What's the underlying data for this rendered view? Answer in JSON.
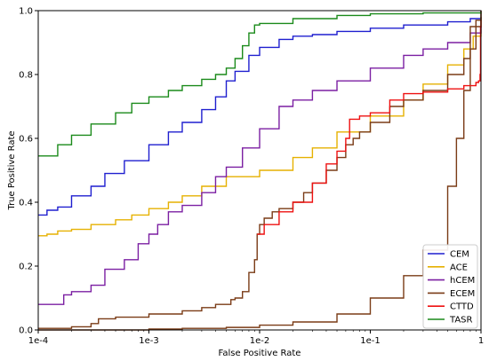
{
  "chart_data": {
    "type": "line",
    "title": "",
    "xlabel": "False Positive Rate",
    "ylabel": "True Positive Rate",
    "xscale": "log",
    "xlim": [
      0.0001,
      1
    ],
    "ylim": [
      0,
      1
    ],
    "xticks": [
      {
        "value": 0.0001,
        "label": "1e-4"
      },
      {
        "value": 0.001,
        "label": "1e-3"
      },
      {
        "value": 0.01,
        "label": "1e-2"
      },
      {
        "value": 0.1,
        "label": "1e-1"
      },
      {
        "value": 1,
        "label": "1"
      }
    ],
    "yticks": [
      {
        "value": 0,
        "label": "0.0"
      },
      {
        "value": 0.2,
        "label": "0.2"
      },
      {
        "value": 0.4,
        "label": "0.4"
      },
      {
        "value": 0.6,
        "label": "0.6"
      },
      {
        "value": 0.8,
        "label": "0.8"
      },
      {
        "value": 1,
        "label": "1.0"
      }
    ],
    "grid": false,
    "legend_position": "bottom-right",
    "series": [
      {
        "name": "CEM",
        "color": "#1f1fcf",
        "points": [
          [
            0.0001,
            0.36
          ],
          [
            0.00012,
            0.375
          ],
          [
            0.00015,
            0.385
          ],
          [
            0.0002,
            0.42
          ],
          [
            0.0003,
            0.45
          ],
          [
            0.0004,
            0.49
          ],
          [
            0.0006,
            0.53
          ],
          [
            0.001,
            0.58
          ],
          [
            0.0015,
            0.62
          ],
          [
            0.002,
            0.65
          ],
          [
            0.003,
            0.69
          ],
          [
            0.004,
            0.73
          ],
          [
            0.005,
            0.78
          ],
          [
            0.006,
            0.81
          ],
          [
            0.008,
            0.86
          ],
          [
            0.01,
            0.885
          ],
          [
            0.015,
            0.91
          ],
          [
            0.02,
            0.92
          ],
          [
            0.03,
            0.925
          ],
          [
            0.05,
            0.935
          ],
          [
            0.1,
            0.945
          ],
          [
            0.2,
            0.955
          ],
          [
            0.5,
            0.965
          ],
          [
            0.8,
            0.975
          ],
          [
            1,
            0.98
          ]
        ]
      },
      {
        "name": "ACE",
        "color": "#e6b100",
        "points": [
          [
            0.0001,
            0.295
          ],
          [
            0.00012,
            0.3
          ],
          [
            0.00015,
            0.31
          ],
          [
            0.0002,
            0.315
          ],
          [
            0.0003,
            0.33
          ],
          [
            0.0005,
            0.345
          ],
          [
            0.0007,
            0.36
          ],
          [
            0.001,
            0.38
          ],
          [
            0.0015,
            0.4
          ],
          [
            0.002,
            0.42
          ],
          [
            0.003,
            0.45
          ],
          [
            0.005,
            0.48
          ],
          [
            0.01,
            0.5
          ],
          [
            0.02,
            0.54
          ],
          [
            0.03,
            0.57
          ],
          [
            0.05,
            0.62
          ],
          [
            0.1,
            0.67
          ],
          [
            0.2,
            0.72
          ],
          [
            0.3,
            0.77
          ],
          [
            0.5,
            0.83
          ],
          [
            0.7,
            0.88
          ],
          [
            0.85,
            0.92
          ],
          [
            1,
            0.98
          ]
        ]
      },
      {
        "name": "hCEM",
        "color": "#7b1fa2",
        "points": [
          [
            0.0001,
            0.08
          ],
          [
            0.00016,
            0.08
          ],
          [
            0.00017,
            0.11
          ],
          [
            0.0002,
            0.12
          ],
          [
            0.0003,
            0.14
          ],
          [
            0.0004,
            0.19
          ],
          [
            0.0006,
            0.22
          ],
          [
            0.0008,
            0.27
          ],
          [
            0.001,
            0.3
          ],
          [
            0.0012,
            0.33
          ],
          [
            0.0015,
            0.37
          ],
          [
            0.002,
            0.39
          ],
          [
            0.003,
            0.43
          ],
          [
            0.004,
            0.48
          ],
          [
            0.005,
            0.51
          ],
          [
            0.007,
            0.57
          ],
          [
            0.01,
            0.63
          ],
          [
            0.015,
            0.7
          ],
          [
            0.02,
            0.72
          ],
          [
            0.03,
            0.75
          ],
          [
            0.05,
            0.78
          ],
          [
            0.1,
            0.82
          ],
          [
            0.2,
            0.86
          ],
          [
            0.3,
            0.88
          ],
          [
            0.5,
            0.9
          ],
          [
            0.8,
            0.93
          ],
          [
            1,
            0.95
          ]
        ]
      },
      {
        "name": "ECEM",
        "color": "#7a3b16",
        "points": [
          [
            0.0001,
            0.0
          ],
          [
            0.0003,
            0.0
          ],
          [
            0.001,
            0.003
          ],
          [
            0.002,
            0.005
          ],
          [
            0.005,
            0.008
          ],
          [
            0.01,
            0.015
          ],
          [
            0.02,
            0.025
          ],
          [
            0.05,
            0.05
          ],
          [
            0.1,
            0.1
          ],
          [
            0.2,
            0.17
          ],
          [
            0.3,
            0.25
          ],
          [
            0.5,
            0.45
          ],
          [
            0.6,
            0.6
          ],
          [
            0.7,
            0.75
          ],
          [
            0.8,
            0.88
          ],
          [
            0.9,
            0.97
          ],
          [
            1,
            1.0
          ]
        ]
      },
      {
        "name": "CTTD",
        "color": "#7a3b16",
        "points": [
          [
            0.0001,
            0.005
          ],
          [
            0.0002,
            0.01
          ],
          [
            0.0003,
            0.02
          ],
          [
            0.00035,
            0.035
          ],
          [
            0.0005,
            0.04
          ],
          [
            0.001,
            0.05
          ],
          [
            0.002,
            0.06
          ],
          [
            0.003,
            0.07
          ],
          [
            0.004,
            0.08
          ],
          [
            0.0055,
            0.095
          ],
          [
            0.006,
            0.1
          ],
          [
            0.007,
            0.12
          ],
          [
            0.008,
            0.18
          ],
          [
            0.009,
            0.22
          ],
          [
            0.0095,
            0.3
          ],
          [
            0.01,
            0.33
          ],
          [
            0.011,
            0.35
          ],
          [
            0.013,
            0.37
          ],
          [
            0.015,
            0.38
          ],
          [
            0.02,
            0.4
          ],
          [
            0.025,
            0.43
          ],
          [
            0.03,
            0.46
          ],
          [
            0.04,
            0.5
          ],
          [
            0.05,
            0.54
          ],
          [
            0.06,
            0.58
          ],
          [
            0.07,
            0.6
          ],
          [
            0.08,
            0.62
          ],
          [
            0.1,
            0.65
          ],
          [
            0.15,
            0.7
          ],
          [
            0.2,
            0.72
          ],
          [
            0.3,
            0.75
          ],
          [
            0.5,
            0.8
          ],
          [
            0.7,
            0.85
          ],
          [
            0.8,
            0.95
          ],
          [
            1,
            1.0
          ]
        ]
      },
      {
        "name": "CTTD-red",
        "color": "#ee1111",
        "points": [
          [
            0.0095,
            0.3
          ],
          [
            0.011,
            0.33
          ],
          [
            0.015,
            0.37
          ],
          [
            0.02,
            0.4
          ],
          [
            0.03,
            0.46
          ],
          [
            0.04,
            0.52
          ],
          [
            0.05,
            0.56
          ],
          [
            0.06,
            0.6
          ],
          [
            0.065,
            0.66
          ],
          [
            0.08,
            0.67
          ],
          [
            0.1,
            0.68
          ],
          [
            0.15,
            0.72
          ],
          [
            0.2,
            0.74
          ],
          [
            0.3,
            0.745
          ],
          [
            0.5,
            0.755
          ],
          [
            0.7,
            0.765
          ],
          [
            0.9,
            0.775
          ],
          [
            0.95,
            0.78
          ],
          [
            0.98,
            0.8
          ],
          [
            0.99,
            0.95
          ],
          [
            1,
            0.97
          ]
        ]
      },
      {
        "name": "TASR",
        "color": "#1a8a1a",
        "points": [
          [
            0.0001,
            0.545
          ],
          [
            0.00015,
            0.58
          ],
          [
            0.0002,
            0.61
          ],
          [
            0.0003,
            0.645
          ],
          [
            0.0005,
            0.68
          ],
          [
            0.0007,
            0.71
          ],
          [
            0.001,
            0.73
          ],
          [
            0.0015,
            0.75
          ],
          [
            0.002,
            0.765
          ],
          [
            0.003,
            0.785
          ],
          [
            0.004,
            0.8
          ],
          [
            0.005,
            0.82
          ],
          [
            0.006,
            0.85
          ],
          [
            0.007,
            0.89
          ],
          [
            0.008,
            0.93
          ],
          [
            0.009,
            0.955
          ],
          [
            0.01,
            0.96
          ],
          [
            0.02,
            0.975
          ],
          [
            0.05,
            0.985
          ],
          [
            0.1,
            0.99
          ],
          [
            0.3,
            0.993
          ],
          [
            1,
            0.995
          ]
        ]
      }
    ],
    "legend": [
      {
        "name": "CEM",
        "color": "#1f1fcf"
      },
      {
        "name": "ACE",
        "color": "#e6b100"
      },
      {
        "name": "hCEM",
        "color": "#7b1fa2"
      },
      {
        "name": "ECEM",
        "color": "#7a3b16"
      },
      {
        "name": "CTTD",
        "color": "#ee1111"
      },
      {
        "name": "TASR",
        "color": "#1a8a1a"
      }
    ]
  }
}
